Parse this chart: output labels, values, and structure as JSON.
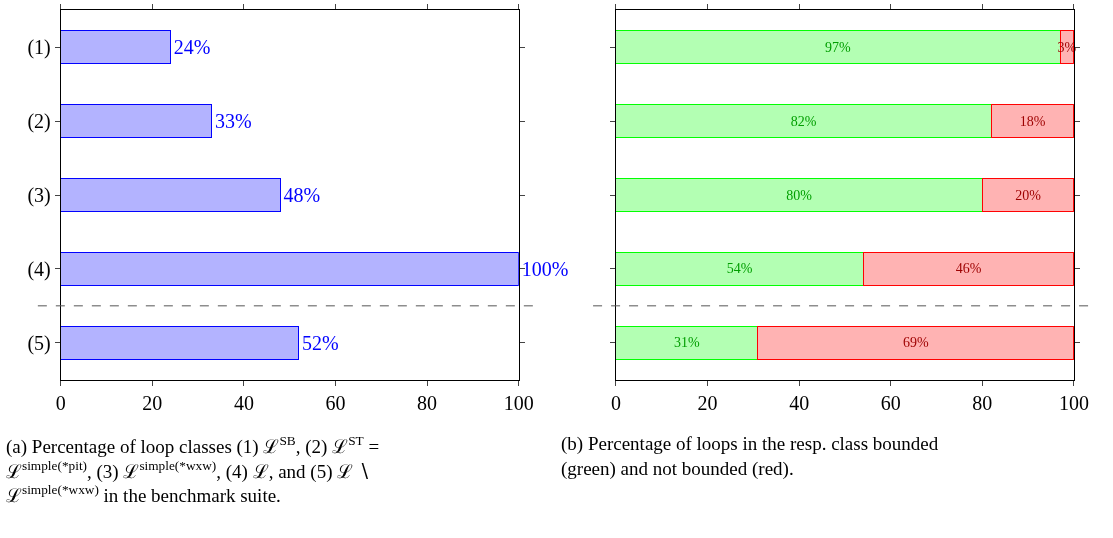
{
  "chart_data": [
    {
      "type": "bar",
      "orientation": "horizontal",
      "categories": [
        "(1)",
        "(2)",
        "(3)",
        "(4)",
        "(5)"
      ],
      "series": [
        {
          "color": "#b3b3ff",
          "values": [
            24,
            33,
            48,
            100,
            52
          ],
          "value_labels": [
            "24%",
            "33%",
            "48%",
            "100%",
            "52%"
          ]
        }
      ],
      "xlim": [
        0,
        100
      ],
      "xticks": [
        0,
        20,
        40,
        60,
        80,
        100
      ],
      "annotations": [
        "(a) Percentage of loop classes (1) ℒ$^{SB}$, (2) ℒ$^{ST}$ = ℒ$^{simple(*pit)}$, (3) ℒ$^{simple(*wxw)}$, (4) ℒ, and (5) ℒ ∖ ℒ$^{simple(*wxw)}$ in the benchmark suite."
      ]
    },
    {
      "type": "bar",
      "orientation": "horizontal",
      "stacked": true,
      "tick_labels": "x",
      "categories": [
        null,
        null,
        null,
        null,
        null
      ],
      "series": [
        {
          "color": "#b3ffb3",
          "values": [
            97,
            82,
            80,
            54,
            31
          ],
          "value_labels": [
            "97%",
            "82%",
            "80%",
            "54%",
            "31%"
          ]
        },
        {
          "color": "#ffb3b3",
          "values": [
            3,
            18,
            20,
            46,
            69
          ],
          "value_labels": [
            "3%",
            "18%",
            "20%",
            "46%",
            "69%"
          ]
        }
      ],
      "xlim": [
        0,
        100
      ],
      "xticks": [
        0,
        20,
        40,
        60,
        80,
        100
      ],
      "annotations": [
        "(b) Percentage of loops in the resp. class bounded (green) and not bounded (red)."
      ]
    }
  ]
}
